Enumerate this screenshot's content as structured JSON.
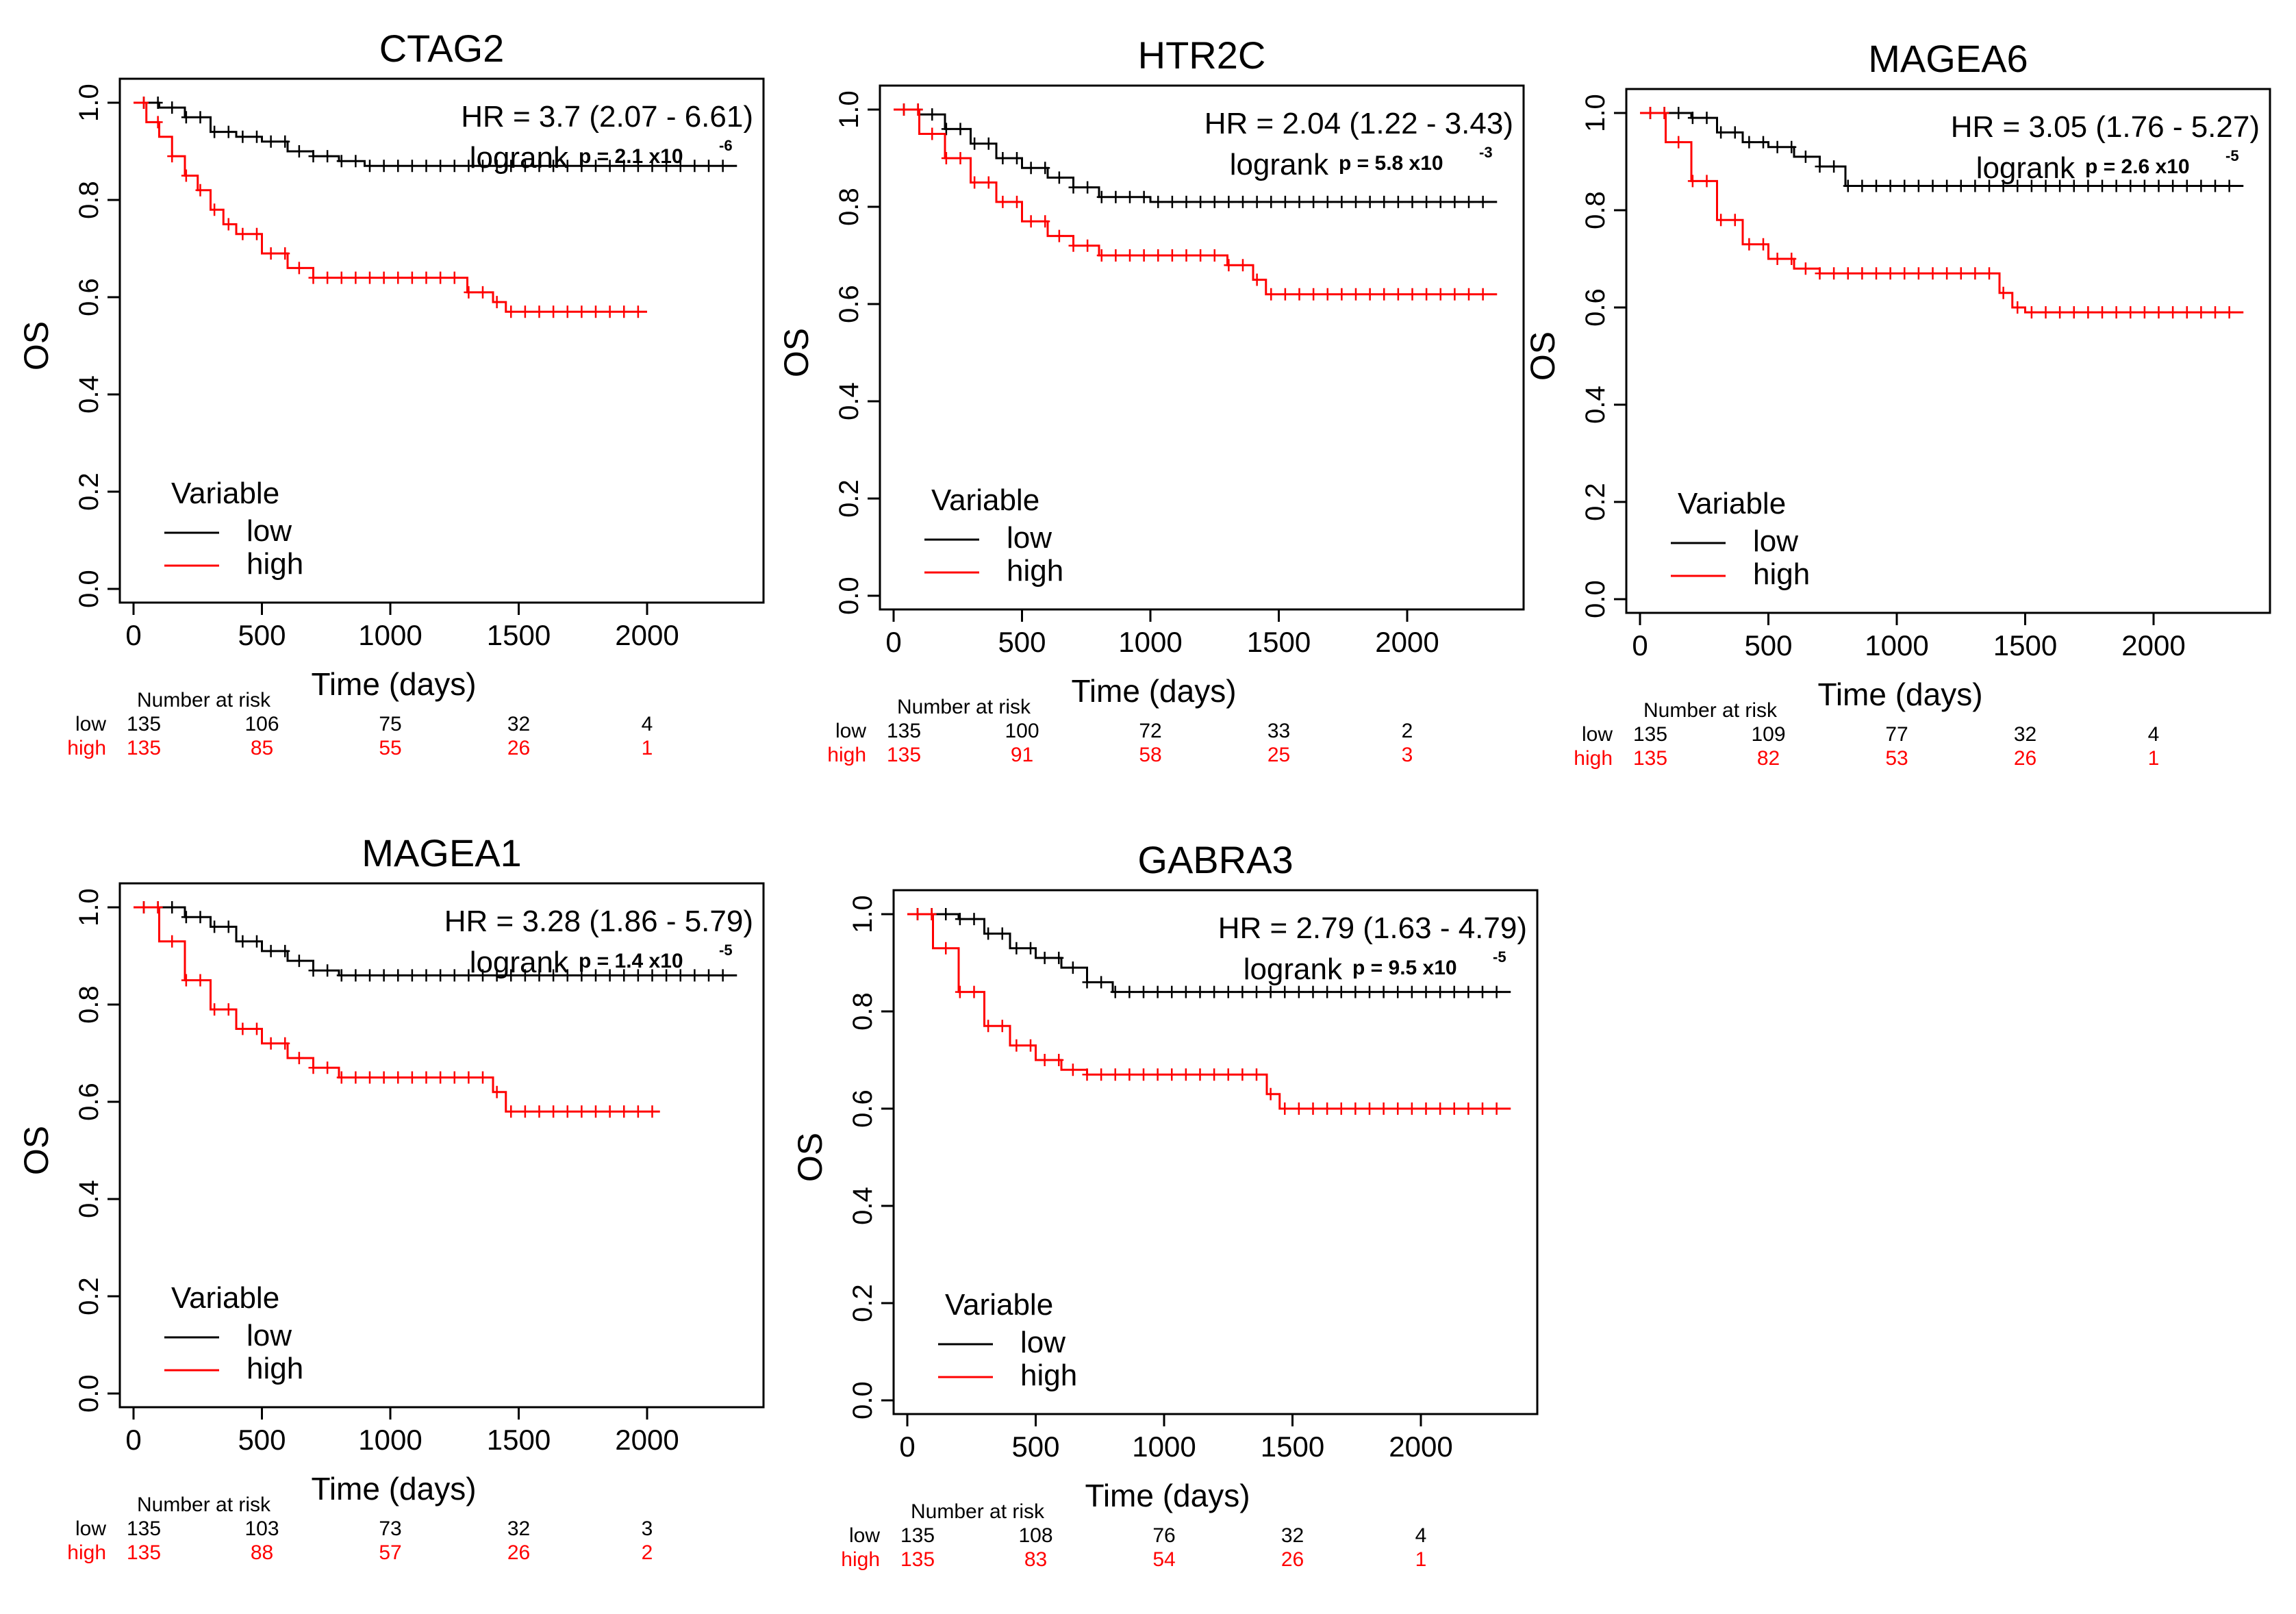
{
  "figure": {
    "title": ""
  },
  "colors": {
    "low": "#000000",
    "high": "#ff0000",
    "axis": "#000000",
    "background": "#ffffff"
  },
  "common": {
    "ylabel": "OS",
    "xlabel": "Time (days)",
    "legend_title": "Variable",
    "risk_header": "Number at risk",
    "logrank_word": "logrank",
    "x_ticks": [
      "0",
      "500",
      "1000",
      "1500",
      "2000"
    ],
    "y_ticks": [
      "0.0",
      "0.2",
      "0.4",
      "0.6",
      "0.8",
      "1.0"
    ]
  },
  "chart_data": [
    {
      "type": "line",
      "title": "CTAG2",
      "xlabel": "Time (days)",
      "ylabel": "OS",
      "xlim": [
        0,
        2400
      ],
      "ylim": [
        0,
        1
      ],
      "hr_text": "HR = 3.7 (2.07 - 6.61)",
      "p_text": "p = 2.1 x10",
      "p_exp": "-6",
      "series": [
        {
          "name": "low",
          "x": [
            0,
            100,
            200,
            300,
            400,
            500,
            600,
            700,
            800,
            900,
            1000,
            1500,
            2000,
            2350
          ],
          "y": [
            1.0,
            0.99,
            0.97,
            0.94,
            0.93,
            0.92,
            0.9,
            0.89,
            0.88,
            0.87,
            0.87,
            0.87,
            0.87,
            0.87
          ]
        },
        {
          "name": "high",
          "x": [
            0,
            50,
            100,
            150,
            200,
            250,
            300,
            350,
            400,
            500,
            600,
            700,
            800,
            1200,
            1300,
            1400,
            1450,
            1500,
            2000
          ],
          "y": [
            1.0,
            0.96,
            0.93,
            0.89,
            0.85,
            0.82,
            0.78,
            0.75,
            0.73,
            0.69,
            0.66,
            0.64,
            0.64,
            0.64,
            0.61,
            0.59,
            0.57,
            0.57,
            0.57
          ]
        }
      ],
      "legend": [
        "low",
        "high"
      ],
      "risk": {
        "times": [
          0,
          500,
          1000,
          1500,
          2000
        ],
        "low": [
          "135",
          "106",
          "75",
          "32",
          "4"
        ],
        "high": [
          "135",
          "85",
          "55",
          "26",
          "1"
        ]
      }
    },
    {
      "type": "line",
      "title": "HTR2C",
      "xlabel": "Time (days)",
      "ylabel": "OS",
      "xlim": [
        0,
        2400
      ],
      "ylim": [
        0,
        1
      ],
      "hr_text": "HR = 2.04 (1.22 - 3.43)",
      "p_text": "p = 5.8 x10",
      "p_exp": "-3",
      "series": [
        {
          "name": "low",
          "x": [
            0,
            100,
            200,
            300,
            400,
            500,
            600,
            700,
            800,
            1000,
            1500,
            2000,
            2350
          ],
          "y": [
            1.0,
            0.99,
            0.96,
            0.93,
            0.9,
            0.88,
            0.86,
            0.84,
            0.82,
            0.81,
            0.81,
            0.81,
            0.81
          ]
        },
        {
          "name": "high",
          "x": [
            0,
            100,
            200,
            300,
            400,
            500,
            600,
            700,
            800,
            1000,
            1200,
            1300,
            1400,
            1450,
            1500,
            2000,
            2350
          ],
          "y": [
            1.0,
            0.95,
            0.9,
            0.85,
            0.81,
            0.77,
            0.74,
            0.72,
            0.7,
            0.7,
            0.7,
            0.68,
            0.65,
            0.62,
            0.62,
            0.62,
            0.62
          ]
        }
      ],
      "legend": [
        "low",
        "high"
      ],
      "risk": {
        "times": [
          0,
          500,
          1000,
          1500,
          2000
        ],
        "low": [
          "135",
          "100",
          "72",
          "33",
          "2"
        ],
        "high": [
          "135",
          "91",
          "58",
          "25",
          "3"
        ]
      }
    },
    {
      "type": "line",
      "title": "MAGEA6",
      "xlabel": "Time (days)",
      "ylabel": "OS",
      "xlim": [
        0,
        2400
      ],
      "ylim": [
        0,
        1
      ],
      "hr_text": "HR = 3.05 (1.76 - 5.27)",
      "p_text": "p = 2.6 x10",
      "p_exp": "-5",
      "series": [
        {
          "name": "low",
          "x": [
            0,
            100,
            200,
            300,
            400,
            500,
            600,
            700,
            800,
            1000,
            1500,
            2000,
            2350
          ],
          "y": [
            1.0,
            1.0,
            0.99,
            0.96,
            0.94,
            0.93,
            0.91,
            0.89,
            0.85,
            0.85,
            0.85,
            0.85,
            0.85
          ]
        },
        {
          "name": "high",
          "x": [
            0,
            100,
            200,
            300,
            400,
            500,
            600,
            700,
            1300,
            1400,
            1450,
            1500,
            2000,
            2350
          ],
          "y": [
            1.0,
            0.94,
            0.86,
            0.78,
            0.73,
            0.7,
            0.68,
            0.67,
            0.67,
            0.63,
            0.6,
            0.59,
            0.59,
            0.59
          ]
        }
      ],
      "legend": [
        "low",
        "high"
      ],
      "risk": {
        "times": [
          0,
          500,
          1000,
          1500,
          2000
        ],
        "low": [
          "135",
          "109",
          "77",
          "32",
          "4"
        ],
        "high": [
          "135",
          "82",
          "53",
          "26",
          "1"
        ]
      }
    },
    {
      "type": "line",
      "title": "MAGEA1",
      "xlabel": "Time (days)",
      "ylabel": "OS",
      "xlim": [
        0,
        2400
      ],
      "ylim": [
        0,
        1
      ],
      "hr_text": "HR = 3.28 (1.86 - 5.79)",
      "p_text": "p = 1.4 x10",
      "p_exp": "-5",
      "series": [
        {
          "name": "low",
          "x": [
            0,
            100,
            200,
            300,
            400,
            500,
            600,
            700,
            800,
            1000,
            1500,
            2000,
            2350
          ],
          "y": [
            1.0,
            1.0,
            0.98,
            0.96,
            0.93,
            0.91,
            0.89,
            0.87,
            0.86,
            0.86,
            0.86,
            0.86,
            0.86
          ]
        },
        {
          "name": "high",
          "x": [
            0,
            100,
            200,
            300,
            400,
            500,
            600,
            700,
            800,
            1300,
            1400,
            1450,
            1500,
            2050
          ],
          "y": [
            1.0,
            0.93,
            0.85,
            0.79,
            0.75,
            0.72,
            0.69,
            0.67,
            0.65,
            0.65,
            0.62,
            0.58,
            0.58,
            0.58
          ]
        }
      ],
      "legend": [
        "low",
        "high"
      ],
      "risk": {
        "times": [
          0,
          500,
          1000,
          1500,
          2000
        ],
        "low": [
          "135",
          "103",
          "73",
          "32",
          "3"
        ],
        "high": [
          "135",
          "88",
          "57",
          "26",
          "2"
        ]
      }
    },
    {
      "type": "line",
      "title": "GABRA3",
      "xlabel": "Time (days)",
      "ylabel": "OS",
      "xlim": [
        0,
        2400
      ],
      "ylim": [
        0,
        1
      ],
      "hr_text": "HR = 2.79 (1.63 - 4.79)",
      "p_text": "p = 9.5 x10",
      "p_exp": "-5",
      "series": [
        {
          "name": "low",
          "x": [
            0,
            100,
            200,
            300,
            400,
            500,
            600,
            700,
            800,
            1000,
            1500,
            2000,
            2350
          ],
          "y": [
            1.0,
            1.0,
            0.99,
            0.96,
            0.93,
            0.91,
            0.89,
            0.86,
            0.84,
            0.84,
            0.84,
            0.84,
            0.84
          ]
        },
        {
          "name": "high",
          "x": [
            0,
            100,
            200,
            300,
            400,
            500,
            600,
            700,
            800,
            1300,
            1400,
            1450,
            1500,
            2350
          ],
          "y": [
            1.0,
            0.93,
            0.84,
            0.77,
            0.73,
            0.7,
            0.68,
            0.67,
            0.67,
            0.67,
            0.63,
            0.6,
            0.6,
            0.6
          ]
        }
      ],
      "legend": [
        "low",
        "high"
      ],
      "risk": {
        "times": [
          0,
          500,
          1000,
          1500,
          2000
        ],
        "low": [
          "135",
          "108",
          "76",
          "32",
          "4"
        ],
        "high": [
          "135",
          "83",
          "54",
          "26",
          "1"
        ]
      }
    }
  ]
}
